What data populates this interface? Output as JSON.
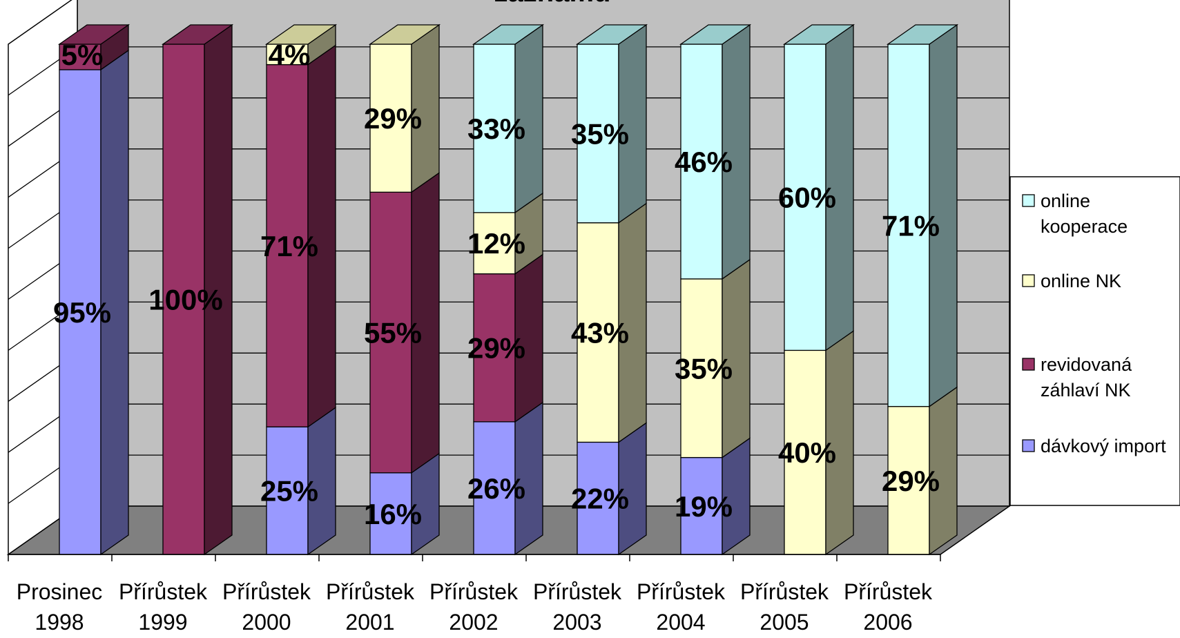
{
  "chart_data": {
    "type": "bar",
    "stacked": true,
    "percent": true,
    "three_d": true,
    "title": "záznamů",
    "categories": [
      [
        "Prosinec",
        "1998"
      ],
      [
        "Přírůstek",
        "1999"
      ],
      [
        "Přírůstek",
        "2000"
      ],
      [
        "Přírůstek",
        "2001"
      ],
      [
        "Přírůstek",
        "2002"
      ],
      [
        "Přírůstek",
        "2003"
      ],
      [
        "Přírůstek",
        "2004"
      ],
      [
        "Přírůstek",
        "2005"
      ],
      [
        "Přírůstek",
        "2006"
      ]
    ],
    "series": [
      {
        "name": "dávkový import",
        "color": "#9999FF",
        "side_color": "#4D4D80",
        "top_color": "#7A7ACC",
        "values": [
          95,
          0,
          25,
          16,
          26,
          22,
          19,
          0,
          0
        ]
      },
      {
        "name": "revidovaná záhlaví NK",
        "color": "#993366",
        "side_color": "#4D1A33",
        "top_color": "#7A2952",
        "values": [
          5,
          100,
          71,
          55,
          29,
          0,
          0,
          0,
          0
        ]
      },
      {
        "name": "online NK",
        "color": "#FFFFCC",
        "side_color": "#808066",
        "top_color": "#CCCC99",
        "values": [
          0,
          0,
          4,
          29,
          12,
          43,
          35,
          40,
          29
        ]
      },
      {
        "name": "online kooperace",
        "color": "#CCFFFF",
        "side_color": "#668080",
        "top_color": "#99CCCC",
        "values": [
          0,
          0,
          0,
          0,
          33,
          35,
          46,
          60,
          71
        ]
      }
    ],
    "ylim": [
      0,
      100
    ],
    "grid": true,
    "legend_position": "right",
    "legend": [
      {
        "series": 3,
        "lines": [
          "online",
          "kooperace"
        ]
      },
      {
        "series": 2,
        "lines": [
          "online NK"
        ]
      },
      {
        "series": 1,
        "lines": [
          "revidovaná",
          "záhlaví NK"
        ]
      },
      {
        "series": 0,
        "lines": [
          "dávkový import"
        ]
      }
    ],
    "data_labels": [
      [
        "95%",
        "5%"
      ],
      [
        "100%"
      ],
      [
        "25%",
        "71%",
        "4%"
      ],
      [
        "16%",
        "55%",
        "29%"
      ],
      [
        "26%",
        "29%",
        "12%",
        "33%"
      ],
      [
        "22%",
        "43%",
        "35%"
      ],
      [
        "19%",
        "35%",
        "46%"
      ],
      [
        "40%",
        "60%"
      ],
      [
        "29%",
        "71%"
      ]
    ],
    "colors": {
      "back_wall": "#C0C0C0",
      "floor": "#808080",
      "grid": "#000000"
    }
  }
}
